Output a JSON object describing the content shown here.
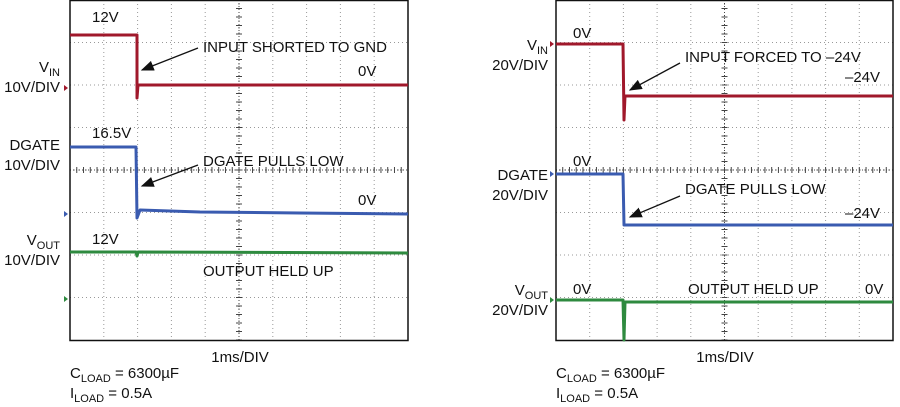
{
  "panels": [
    {
      "channels": [
        {
          "name": "V",
          "sub": "IN",
          "scale": "10V/DIV"
        },
        {
          "name": "DGATE",
          "scale": "10V/DIV"
        },
        {
          "name": "V",
          "sub": "OUT",
          "scale": "10V/DIV"
        }
      ],
      "annotations": [
        "12V",
        "INPUT SHORTED TO GND",
        "0V",
        "16.5V",
        "DGATE PULLS LOW",
        "0V",
        "12V",
        "OUTPUT HELD UP"
      ],
      "timebase": "1ms/DIV",
      "notes": [
        {
          "name": "C",
          "sub": "LOAD",
          "rest": " = 6300µF"
        },
        {
          "name": "I",
          "sub": "LOAD",
          "rest": " = 0.5A"
        }
      ]
    },
    {
      "channels": [
        {
          "name": "V",
          "sub": "IN",
          "scale": "20V/DIV"
        },
        {
          "name": "DGATE",
          "scale": "20V/DIV"
        },
        {
          "name": "V",
          "sub": "OUT",
          "scale": "20V/DIV"
        }
      ],
      "annotations": [
        "0V",
        "INPUT FORCED TO –24V",
        "–24V",
        "0V",
        "DGATE PULLS LOW",
        "–24V",
        "0V",
        "OUTPUT HELD UP",
        "0V"
      ],
      "timebase": "1ms/DIV",
      "notes": [
        {
          "name": "C",
          "sub": "LOAD",
          "rest": " = 6300µF"
        },
        {
          "name": "I",
          "sub": "LOAD",
          "rest": " = 0.5A"
        }
      ]
    }
  ]
}
